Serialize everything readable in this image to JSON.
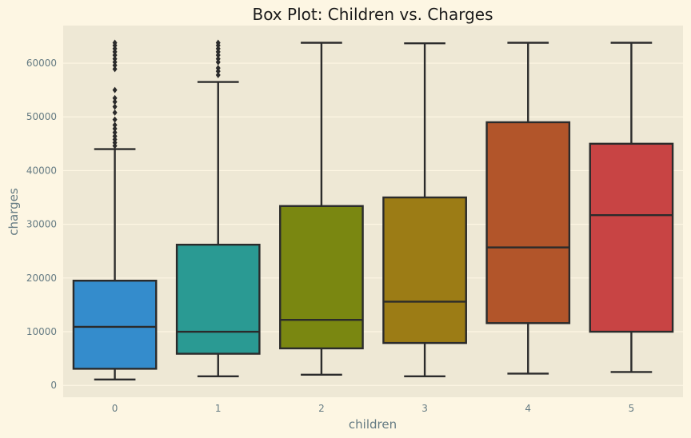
{
  "chart_data": {
    "type": "box",
    "title": "Box Plot: Children vs. Charges",
    "xlabel": "children",
    "ylabel": "charges",
    "ylim": [
      -2200,
      67000
    ],
    "yticks": [
      0,
      10000,
      20000,
      30000,
      40000,
      50000,
      60000
    ],
    "grid": true,
    "colors": {
      "background": "#fdf6e3",
      "plot_area": "#eee8d5",
      "grid": "#fdf6e3",
      "edge": "#2b2b2b"
    },
    "categories": [
      "0",
      "1",
      "2",
      "3",
      "4",
      "5"
    ],
    "boxes": [
      {
        "category": "0",
        "whislo": 1100,
        "q1": 3100,
        "median": 10900,
        "q3": 19500,
        "whishi": 44000,
        "color": "#348ccc",
        "fliers": [
          44600,
          45200,
          45800,
          46400,
          47100,
          47800,
          48500,
          49500,
          50800,
          51900,
          52800,
          53500,
          55000,
          58900,
          59600,
          60200,
          60800,
          61500,
          62100,
          62700,
          63300,
          63800
        ]
      },
      {
        "category": "1",
        "whislo": 1700,
        "q1": 5900,
        "median": 10000,
        "q3": 26200,
        "whishi": 56500,
        "color": "#2a9a93",
        "fliers": [
          57800,
          58500,
          59100,
          60200,
          60800,
          61500,
          62100,
          62700,
          63300,
          63800
        ]
      },
      {
        "category": "2",
        "whislo": 2000,
        "q1": 6900,
        "median": 12200,
        "q3": 33400,
        "whishi": 63800,
        "color": "#7a8711",
        "fliers": []
      },
      {
        "category": "3",
        "whislo": 1700,
        "q1": 7900,
        "median": 15600,
        "q3": 35000,
        "whishi": 63700,
        "color": "#9c7c15",
        "fliers": []
      },
      {
        "category": "4",
        "whislo": 2200,
        "q1": 11600,
        "median": 25700,
        "q3": 49000,
        "whishi": 63800,
        "color": "#b2552a",
        "fliers": []
      },
      {
        "category": "5",
        "whislo": 2500,
        "q1": 10000,
        "median": 31700,
        "q3": 45000,
        "whishi": 63800,
        "color": "#c84444",
        "fliers": []
      }
    ]
  }
}
